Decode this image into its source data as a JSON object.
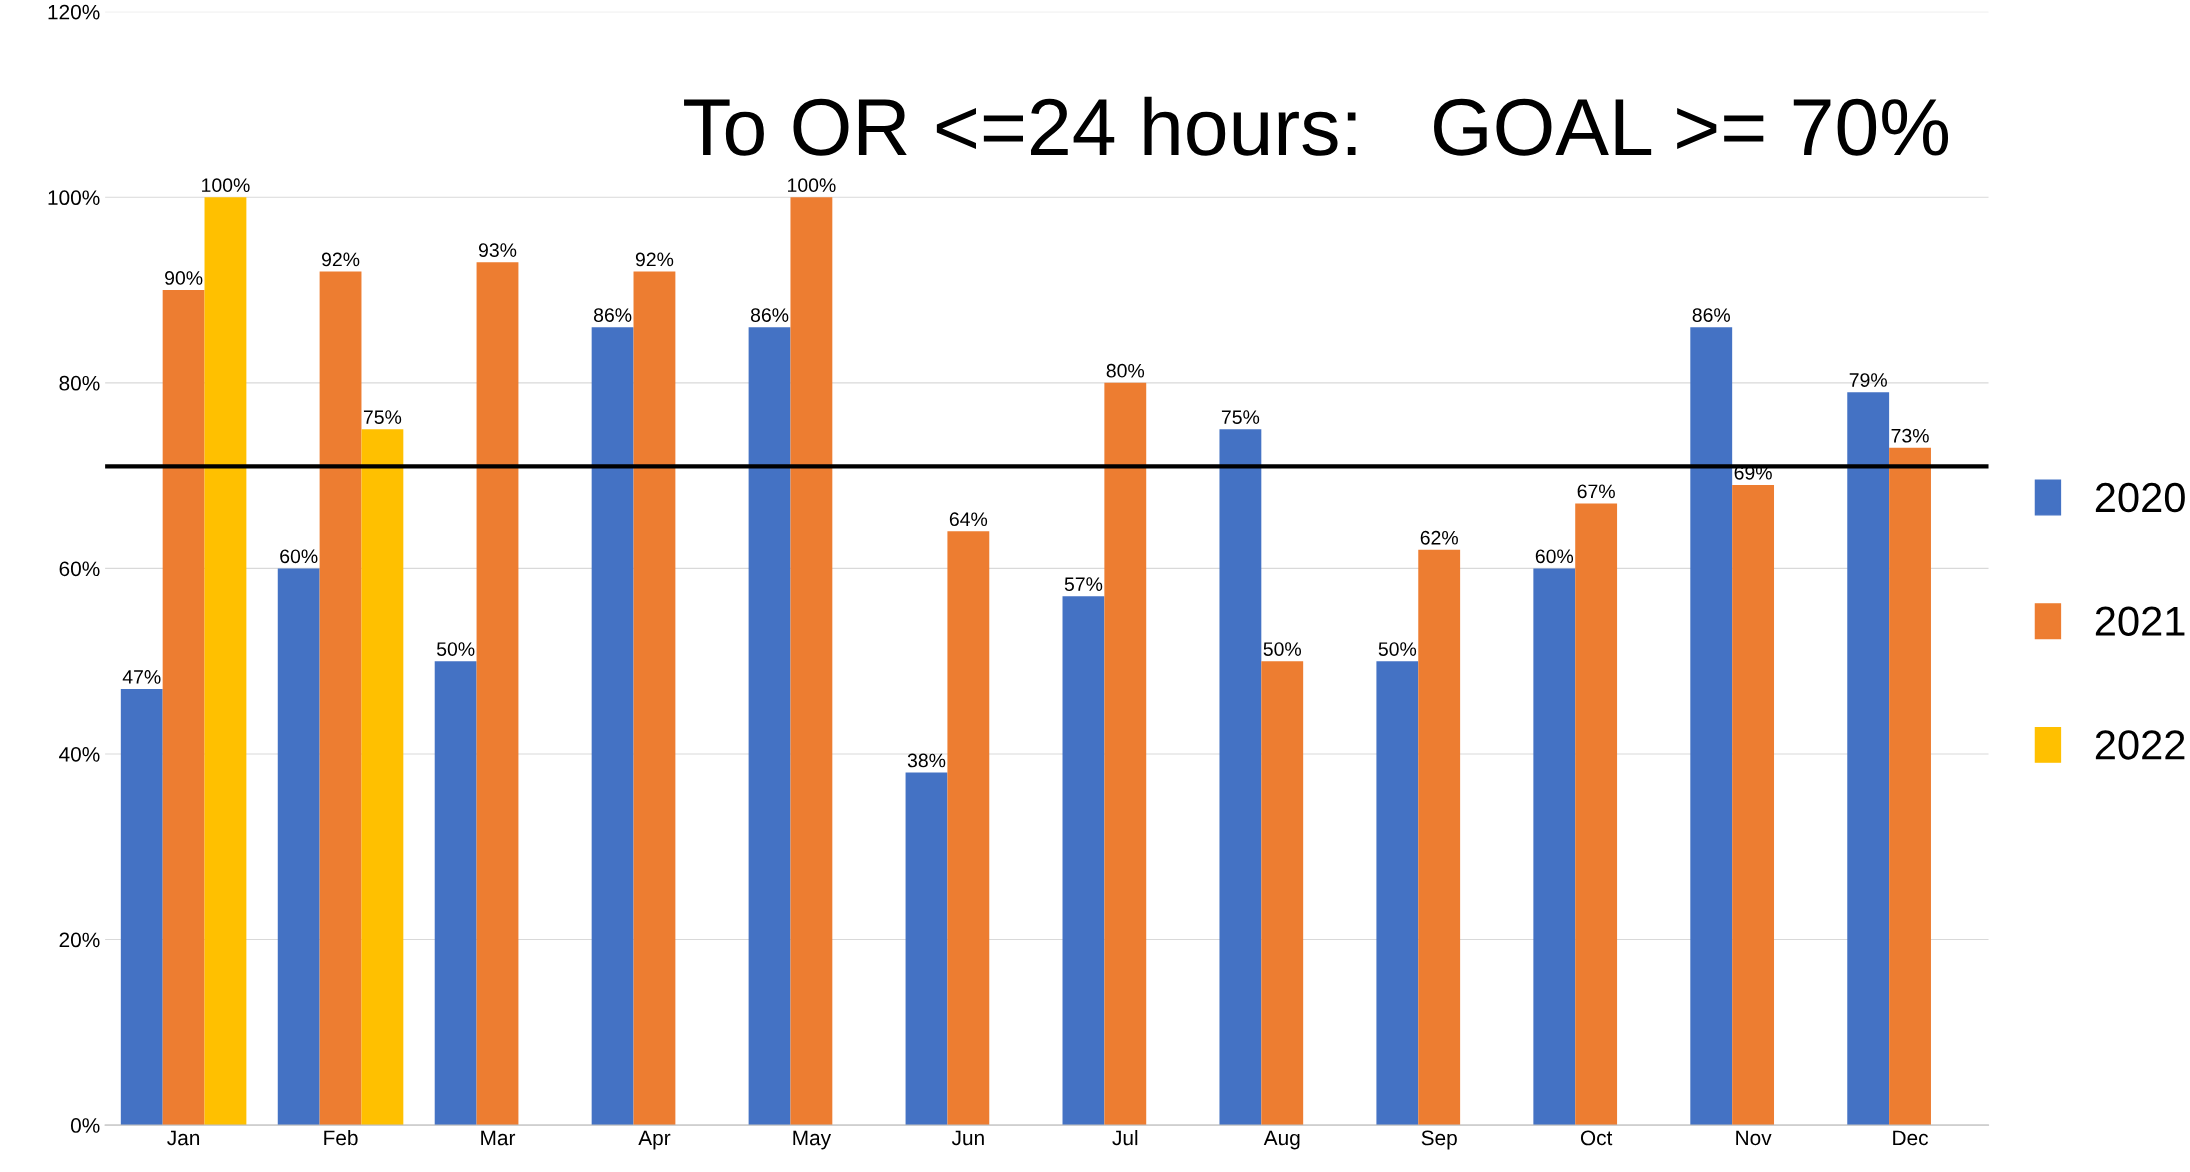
{
  "chart_data": {
    "type": "bar",
    "title": "To OR <=24 hours:   GOAL >= 70%",
    "categories": [
      "Jan",
      "Feb",
      "Mar",
      "Apr",
      "May",
      "Jun",
      "Jul",
      "Aug",
      "Sep",
      "Oct",
      "Nov",
      "Dec"
    ],
    "series": [
      {
        "name": "2020",
        "color": "#4472c4",
        "values": [
          47,
          60,
          50,
          86,
          86,
          38,
          57,
          75,
          50,
          60,
          86,
          79
        ],
        "value_labels": [
          "47%",
          "60%",
          "50%",
          "86%",
          "86%",
          "38%",
          "57%",
          "75%",
          "50%",
          "60%",
          "86%",
          "79%"
        ]
      },
      {
        "name": "2021",
        "color": "#ed7d31",
        "values": [
          90,
          92,
          93,
          92,
          100,
          64,
          80,
          50,
          62,
          67,
          69,
          73
        ],
        "value_labels": [
          "90%",
          "92%",
          "93%",
          "92%",
          "100%",
          "64%",
          "80%",
          "50%",
          "62%",
          "67%",
          "69%",
          "73%"
        ]
      },
      {
        "name": "2022",
        "color": "#ffc000",
        "values": [
          100,
          75,
          null,
          null,
          null,
          null,
          null,
          null,
          null,
          null,
          null,
          null
        ],
        "value_labels": [
          "100%",
          "75%",
          null,
          null,
          null,
          null,
          null,
          null,
          null,
          null,
          null,
          null
        ]
      }
    ],
    "ylim": [
      0,
      120
    ],
    "yticks": [
      {
        "value": 0,
        "label": "0%"
      },
      {
        "value": 20,
        "label": "20%"
      },
      {
        "value": 40,
        "label": "40%"
      },
      {
        "value": 60,
        "label": "60%"
      },
      {
        "value": 80,
        "label": "80%"
      },
      {
        "value": 100,
        "label": "100%"
      },
      {
        "value": 120,
        "label": "120%"
      }
    ],
    "ref_lines": [
      {
        "axis": "y",
        "value": 71,
        "label": null,
        "color": "#000000"
      }
    ],
    "grid": "y",
    "legend": "right"
  }
}
